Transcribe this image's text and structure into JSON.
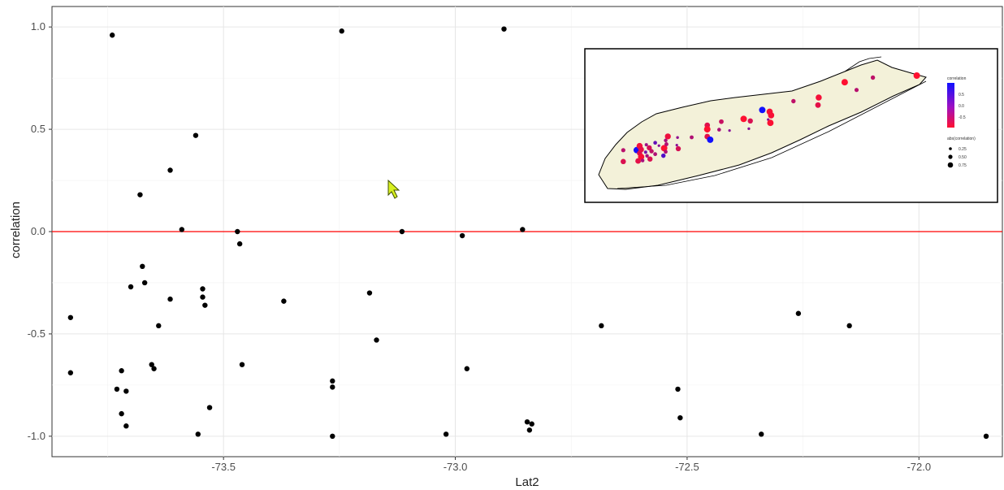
{
  "chart_data": {
    "type": "scatter",
    "title": "",
    "xlabel": "Lat2",
    "ylabel": "correlation",
    "xlim": [
      -73.87,
      -71.82
    ],
    "ylim": [
      -1.1,
      1.1
    ],
    "x_ticks": [
      -73.5,
      -73.0,
      -72.5,
      -72.0
    ],
    "x_tick_labels": [
      "-73.5",
      "-73.0",
      "-72.5",
      "-72.0"
    ],
    "y_ticks": [
      1.0,
      0.5,
      0.0,
      -0.5,
      -1.0
    ],
    "y_tick_labels": [
      "1.0",
      "0.5",
      "0.0",
      "-0.5",
      "-1.0"
    ],
    "grid": true,
    "reference_line": {
      "y": 0.0,
      "color": "#ff0000"
    },
    "point_color": "#000000",
    "points": [
      {
        "x": -73.83,
        "y": -0.42
      },
      {
        "x": -73.83,
        "y": -0.69
      },
      {
        "x": -73.74,
        "y": 0.96
      },
      {
        "x": -73.73,
        "y": -0.77
      },
      {
        "x": -73.72,
        "y": -0.68
      },
      {
        "x": -73.72,
        "y": -0.89
      },
      {
        "x": -73.71,
        "y": -0.95
      },
      {
        "x": -73.71,
        "y": -0.78
      },
      {
        "x": -73.7,
        "y": -0.27
      },
      {
        "x": -73.68,
        "y": 0.18
      },
      {
        "x": -73.675,
        "y": -0.17
      },
      {
        "x": -73.67,
        "y": -0.25
      },
      {
        "x": -73.655,
        "y": -0.65
      },
      {
        "x": -73.65,
        "y": -0.67
      },
      {
        "x": -73.64,
        "y": -0.46
      },
      {
        "x": -73.615,
        "y": 0.3
      },
      {
        "x": -73.615,
        "y": -0.33
      },
      {
        "x": -73.59,
        "y": 0.01
      },
      {
        "x": -73.56,
        "y": 0.47
      },
      {
        "x": -73.555,
        "y": -0.99
      },
      {
        "x": -73.545,
        "y": -0.28
      },
      {
        "x": -73.545,
        "y": -0.32
      },
      {
        "x": -73.54,
        "y": -0.36
      },
      {
        "x": -73.53,
        "y": -0.86
      },
      {
        "x": -73.47,
        "y": 0.0
      },
      {
        "x": -73.465,
        "y": -0.06
      },
      {
        "x": -73.46,
        "y": -0.65
      },
      {
        "x": -73.37,
        "y": -0.34
      },
      {
        "x": -73.265,
        "y": -0.73
      },
      {
        "x": -73.265,
        "y": -0.76
      },
      {
        "x": -73.265,
        "y": -1.0
      },
      {
        "x": -73.245,
        "y": 0.98
      },
      {
        "x": -73.185,
        "y": -0.3
      },
      {
        "x": -73.17,
        "y": -0.53
      },
      {
        "x": -73.115,
        "y": 0.0
      },
      {
        "x": -73.02,
        "y": -0.99
      },
      {
        "x": -72.985,
        "y": -0.02
      },
      {
        "x": -72.975,
        "y": -0.67
      },
      {
        "x": -72.895,
        "y": 0.99
      },
      {
        "x": -72.855,
        "y": 0.01
      },
      {
        "x": -72.845,
        "y": -0.93
      },
      {
        "x": -72.84,
        "y": -0.97
      },
      {
        "x": -72.835,
        "y": -0.94
      },
      {
        "x": -72.685,
        "y": -0.46
      },
      {
        "x": -72.52,
        "y": -0.77
      },
      {
        "x": -72.515,
        "y": -0.91
      },
      {
        "x": -72.34,
        "y": -0.99
      },
      {
        "x": -72.26,
        "y": -0.4
      },
      {
        "x": -72.15,
        "y": -0.46
      },
      {
        "x": -71.855,
        "y": -1.0
      }
    ]
  },
  "inset_map": {
    "legend_color_title": "correlation",
    "legend_color_labels": [
      "0.5",
      "0.0",
      "-0.5"
    ],
    "legend_color_high": "#1010ff",
    "legend_color_low": "#ff1030",
    "legend_size_title": "abs(correlation)",
    "legend_size_labels": [
      "0.25",
      "0.50",
      "0.75"
    ],
    "land_color": "#f3f1d9"
  },
  "cursor": {
    "name": "mouse-pointer"
  }
}
